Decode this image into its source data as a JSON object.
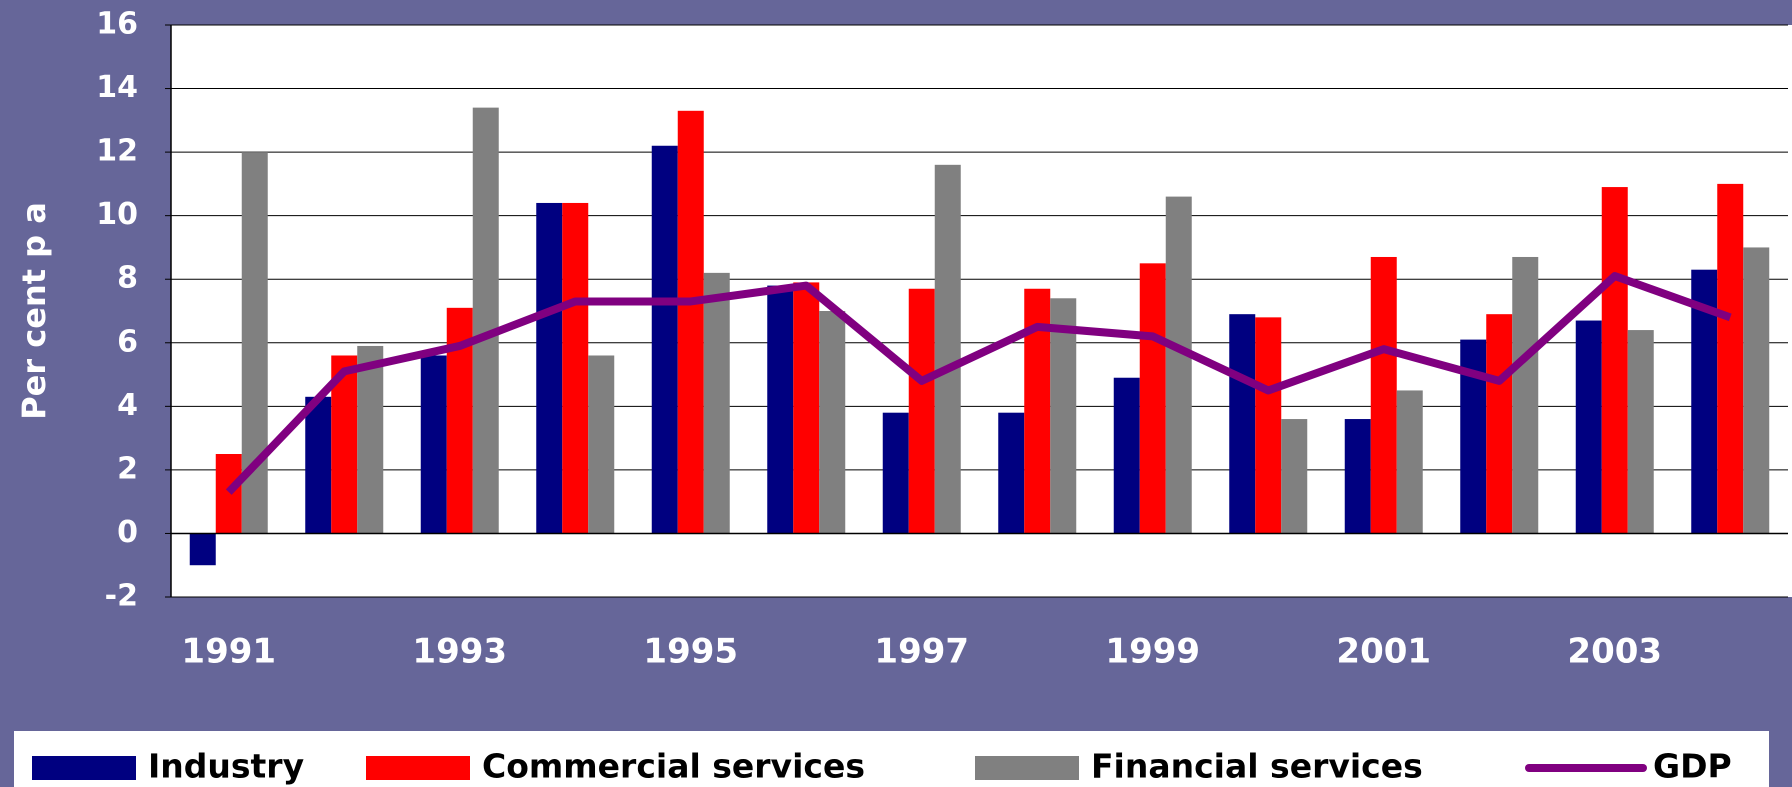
{
  "chart_data": {
    "type": "bar",
    "y_label": "Per cent p a",
    "categories": [
      "1991",
      null,
      "1993",
      null,
      "1995",
      null,
      "1997",
      null,
      "1999",
      null,
      "2001",
      null,
      "2003",
      null
    ],
    "series": [
      {
        "name": "Industry",
        "color": "#000080",
        "values": [
          -1.0,
          4.3,
          5.6,
          10.4,
          12.2,
          7.8,
          3.8,
          3.8,
          4.9,
          6.9,
          3.6,
          6.1,
          6.7,
          8.3
        ]
      },
      {
        "name": "Commercial services",
        "color": "#ff0000",
        "values": [
          2.5,
          5.6,
          7.1,
          10.4,
          13.3,
          7.9,
          7.7,
          7.7,
          8.5,
          6.8,
          8.7,
          6.9,
          10.9,
          11.0
        ]
      },
      {
        "name": "Financial services",
        "color": "#808080",
        "values": [
          12.0,
          5.9,
          13.4,
          5.6,
          8.2,
          7.0,
          11.6,
          7.4,
          10.6,
          3.6,
          4.5,
          8.7,
          6.4,
          9.0
        ]
      },
      {
        "name": "GDP",
        "color": "#800080",
        "type": "line",
        "values": [
          1.3,
          5.1,
          5.9,
          7.3,
          7.3,
          7.8,
          4.8,
          6.5,
          6.2,
          4.5,
          5.8,
          4.8,
          8.1,
          6.8
        ]
      }
    ],
    "ylim": [
      -2,
      16
    ],
    "yticks": [
      -2,
      0,
      2,
      4,
      6,
      8,
      10,
      12,
      14,
      16
    ],
    "grid": true,
    "legend": "bottom"
  }
}
